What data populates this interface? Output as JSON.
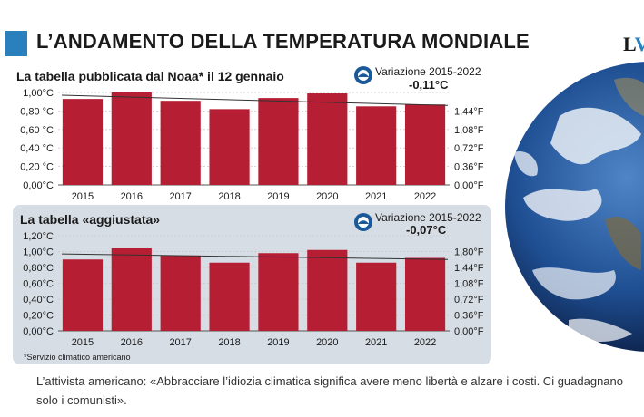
{
  "header": {
    "title": "L’ANDAMENTO DELLA TEMPERATURA MONDIALE",
    "brand_l": "L",
    "brand_v": "V"
  },
  "caption": "L’attivista americano: «Abbracciare l’idiozia climatica significa avere meno libertà e alzare i costi. Ci guadagnano solo i comunisti».",
  "colors": {
    "bar": "#b51e33",
    "panel2": "#d7dde4",
    "accent": "#2a7fbd"
  },
  "chart_data": [
    {
      "type": "bar",
      "title": "La tabella pubblicata dal Noaa* il 12 gennaio",
      "badge_label": "Variazione 2015-2022",
      "badge_value": "-0,11°C",
      "categories": [
        "2015",
        "2016",
        "2017",
        "2018",
        "2019",
        "2020",
        "2021",
        "2022"
      ],
      "values": [
        0.93,
        1.0,
        0.91,
        0.82,
        0.94,
        0.99,
        0.85,
        0.87
      ],
      "ylim": [
        0,
        1.0
      ],
      "left_ticks": [
        "0,00°C",
        "0,20 °C",
        "0,40 °C",
        "0,60 °C",
        "0,80 °C",
        "1,00°C"
      ],
      "left_tick_values": [
        0,
        0.2,
        0.4,
        0.6,
        0.8,
        1.0
      ],
      "right_ticks": [
        "0,00°F",
        "0,36°F",
        "0,72°F",
        "1,08°F",
        "1,44°F"
      ],
      "right_tick_values": [
        0,
        0.2,
        0.4,
        0.6,
        0.8
      ],
      "trend": [
        0.97,
        0.86
      ]
    },
    {
      "type": "bar",
      "title": "La tabella «aggiustata»",
      "badge_label": "Variazione 2015-2022",
      "badge_value": "-0,07°C",
      "categories": [
        "2015",
        "2016",
        "2017",
        "2018",
        "2019",
        "2020",
        "2021",
        "2022"
      ],
      "values": [
        0.9,
        1.04,
        0.95,
        0.86,
        0.98,
        1.02,
        0.86,
        0.92
      ],
      "ylim": [
        0,
        1.2
      ],
      "left_ticks": [
        "0,00°C",
        "0,20°C",
        "0,40°C",
        "0,60°C",
        "0,80°C",
        "1,00°C",
        "1,20°C"
      ],
      "left_tick_values": [
        0,
        0.2,
        0.4,
        0.6,
        0.8,
        1.0,
        1.2
      ],
      "right_ticks": [
        "0,00°F",
        "0,36°F",
        "0,72°F",
        "1,08°F",
        "1,44°F",
        "1,80°F"
      ],
      "right_tick_values": [
        0,
        0.2,
        0.4,
        0.6,
        0.8,
        1.0
      ],
      "trend": [
        0.97,
        0.9
      ],
      "footnote": "*Servizio climatico americano"
    }
  ]
}
